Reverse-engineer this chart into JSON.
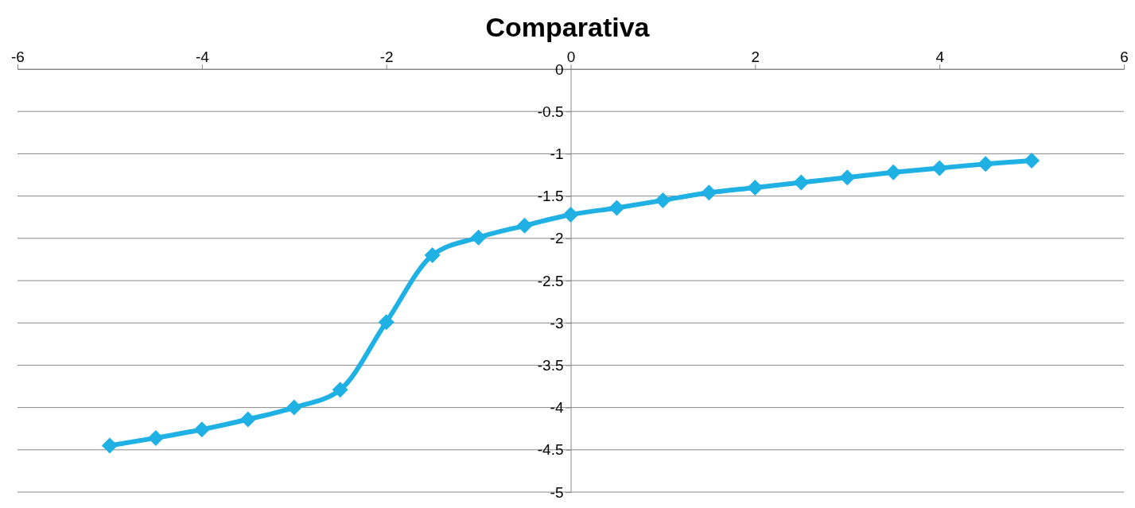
{
  "chart_data": {
    "type": "line",
    "title": "Comparativa",
    "x": [
      -5,
      -4.5,
      -4,
      -3.5,
      -3,
      -2.5,
      -2,
      -1.5,
      -1,
      -0.5,
      0,
      0.5,
      1,
      1.5,
      2,
      2.5,
      3,
      3.5,
      4,
      4.5,
      5
    ],
    "series": [
      {
        "color": "#1fb0e4",
        "values": [
          -4.45,
          -4.36,
          -4.26,
          -4.14,
          -4.0,
          -3.79,
          -2.99,
          -2.2,
          -1.99,
          -1.85,
          -1.72,
          -1.64,
          -1.55,
          -1.46,
          -1.4,
          -1.34,
          -1.28,
          -1.22,
          -1.17,
          -1.12,
          -1.08
        ]
      }
    ],
    "xlim": [
      -6,
      6
    ],
    "xticks": [
      -6,
      -4,
      -2,
      0,
      2,
      4,
      6
    ],
    "ylim": [
      -5,
      0
    ],
    "yticks": [
      0,
      -0.5,
      -1,
      -1.5,
      -2,
      -2.5,
      -3,
      -3.5,
      -4,
      -4.5,
      -5
    ],
    "grid": "y",
    "marker": "diamond",
    "line_style": "solid"
  }
}
